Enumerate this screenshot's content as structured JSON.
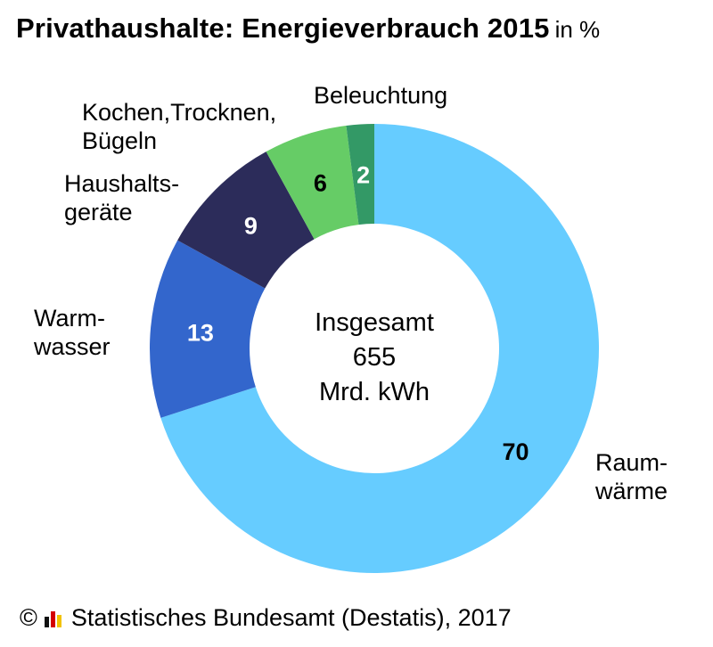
{
  "title": {
    "main": "Privathaushalte: Energieverbrauch 2015",
    "unit": "in %"
  },
  "center": {
    "line1": "Insgesamt",
    "line2": "655",
    "line3": "Mrd. kWh"
  },
  "footer": {
    "copyright_symbol": "©",
    "logo_icon": "destatis-logo-icon",
    "text": "Statistisches Bundesamt (Destatis), 2017"
  },
  "chart_data": {
    "type": "pie",
    "variant": "donut",
    "title": "Privathaushalte: Energieverbrauch 2015",
    "unit": "in %",
    "slices": [
      {
        "label_lines": [
          "Raum-",
          "wärme"
        ],
        "value": 70,
        "color": "#66ccff",
        "value_color": "#000000"
      },
      {
        "label_lines": [
          "Warm-",
          "wasser"
        ],
        "value": 13,
        "color": "#3366cc",
        "value_color": "#ffffff"
      },
      {
        "label_lines": [
          "Haushalts-",
          "geräte"
        ],
        "value": 9,
        "color": "#2c2c5a",
        "value_color": "#ffffff"
      },
      {
        "label_lines": [
          "Kochen,Trocknen,",
          "Bügeln"
        ],
        "value": 6,
        "color": "#66cc66",
        "value_color": "#000000"
      },
      {
        "label_lines": [
          "Beleuchtung"
        ],
        "value": 2,
        "color": "#339966",
        "value_color": "#ffffff"
      }
    ]
  }
}
